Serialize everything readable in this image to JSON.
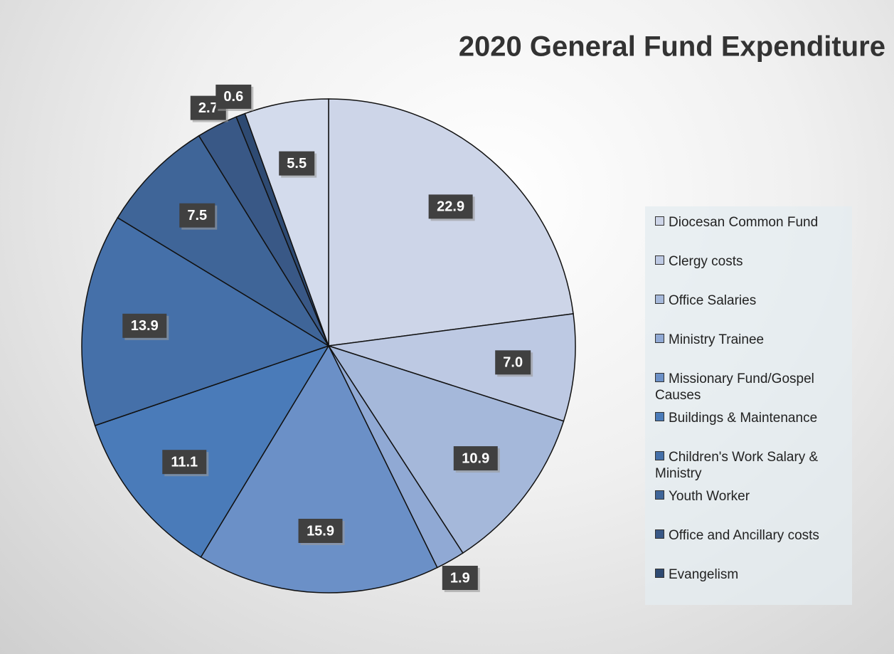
{
  "chart_data": {
    "type": "pie",
    "title": "2020 General Fund Expenditure",
    "categories": [
      "Diocesan Common Fund",
      "Clergy costs",
      "Office Salaries",
      "Ministry Trainee",
      "Missionary Fund/Gospel Causes",
      "Buildings & Maintenance",
      "Children's  Work Salary & Ministry",
      "Youth Worker",
      "Office and Ancillary costs",
      "Evangelism",
      null
    ],
    "values": [
      22.9,
      7.0,
      10.9,
      1.9,
      15.9,
      11.1,
      13.9,
      7.5,
      2.7,
      0.6,
      5.5
    ],
    "value_labels": [
      "22.9",
      "7.0",
      "10.9",
      "1.9",
      "15.9",
      "11.1",
      "13.9",
      "7.5",
      "2.7",
      "0.6",
      "5.5"
    ],
    "colors": [
      "#cdd5e8",
      "#bdc9e3",
      "#a5b8da",
      "#90a9d4",
      "#6b90c7",
      "#4a7bb9",
      "#4570a9",
      "#3f6598",
      "#395886",
      "#2e4a72",
      "#d3dbec"
    ],
    "legend": "right"
  }
}
